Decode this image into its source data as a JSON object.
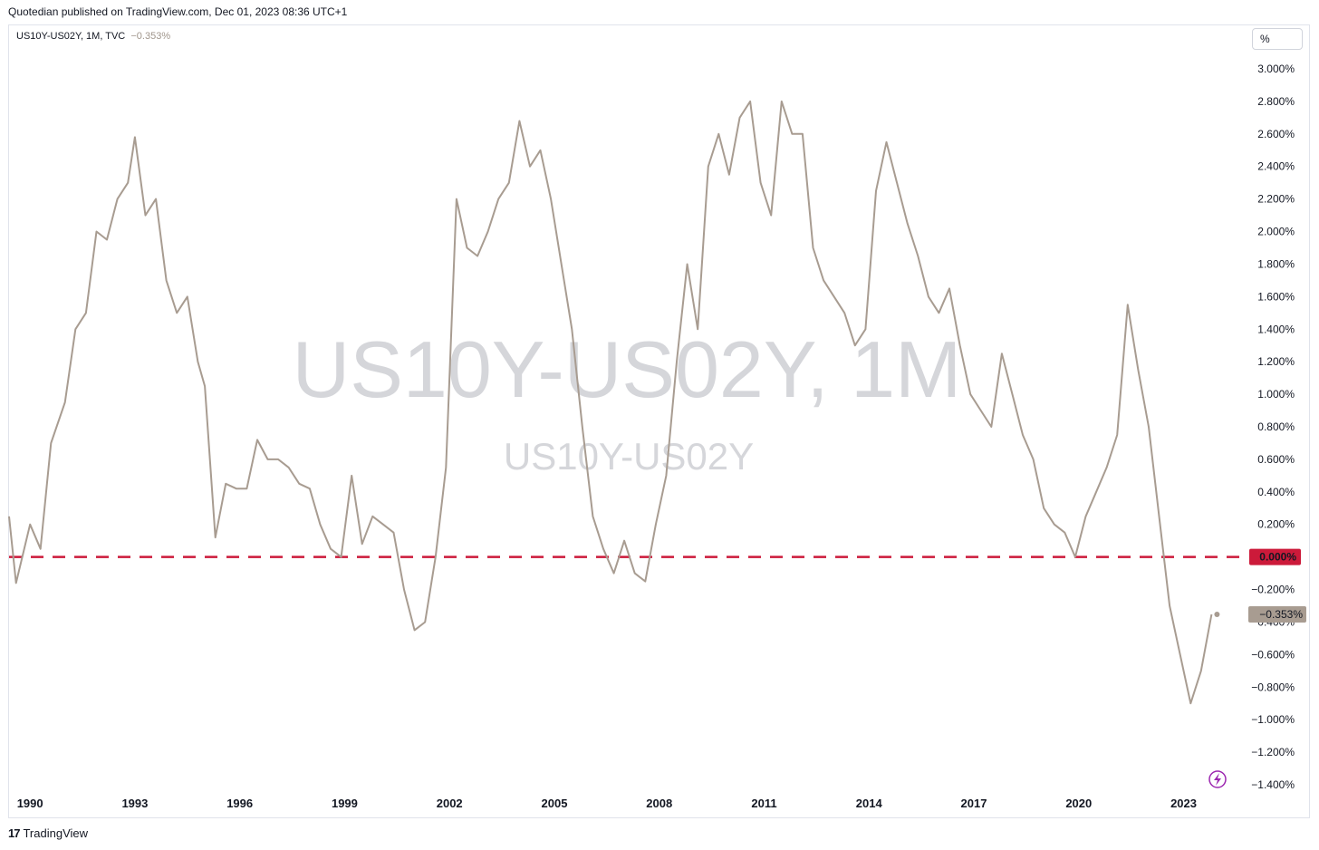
{
  "header": {
    "published": "Quotedian published on TradingView.com, Dec 01, 2023 08:36 UTC+1"
  },
  "legend": {
    "symbol": "US10Y-US02Y, 1M, TVC",
    "value": "−0.353%"
  },
  "unit_button": "%",
  "watermark": {
    "main": "US10Y-US02Y, 1M",
    "sub": "US10Y-US02Y"
  },
  "footer": {
    "brand": "TradingView",
    "logo": "17"
  },
  "colors": {
    "line": "#a89c91",
    "zero_line": "#cc1a3a",
    "last_badge": "#a89c91",
    "zero_badge": "#cc1a3a",
    "alert_icon": "#9c27b0"
  },
  "icons": {
    "alert": "lightning-icon",
    "logo": "tradingview-logo-icon"
  },
  "chart_data": {
    "type": "line",
    "series": [
      {
        "name": "US10Y-US02Y",
        "x_unit": "year",
        "y_unit": "%"
      }
    ],
    "x": [
      1989.4,
      1989.6,
      1990.0,
      1990.3,
      1990.6,
      1991.0,
      1991.3,
      1991.6,
      1991.9,
      1992.2,
      1992.5,
      1992.8,
      1993.0,
      1993.3,
      1993.6,
      1993.9,
      1994.2,
      1994.5,
      1994.8,
      1995.0,
      1995.3,
      1995.6,
      1995.9,
      1996.2,
      1996.5,
      1996.8,
      1997.1,
      1997.4,
      1997.7,
      1998.0,
      1998.3,
      1998.6,
      1998.9,
      1999.2,
      1999.5,
      1999.8,
      2000.1,
      2000.4,
      2000.7,
      2001.0,
      2001.3,
      2001.6,
      2001.9,
      2002.2,
      2002.5,
      2002.8,
      2003.1,
      2003.4,
      2003.7,
      2004.0,
      2004.3,
      2004.6,
      2004.9,
      2005.2,
      2005.5,
      2005.8,
      2006.1,
      2006.4,
      2006.7,
      2007.0,
      2007.3,
      2007.6,
      2007.9,
      2008.2,
      2008.5,
      2008.8,
      2009.1,
      2009.4,
      2009.7,
      2010.0,
      2010.3,
      2010.6,
      2010.9,
      2011.2,
      2011.5,
      2011.8,
      2012.1,
      2012.4,
      2012.7,
      2013.0,
      2013.3,
      2013.6,
      2013.9,
      2014.2,
      2014.5,
      2014.8,
      2015.1,
      2015.4,
      2015.7,
      2016.0,
      2016.3,
      2016.6,
      2016.9,
      2017.2,
      2017.5,
      2017.8,
      2018.1,
      2018.4,
      2018.7,
      2019.0,
      2019.3,
      2019.6,
      2019.9,
      2020.2,
      2020.5,
      2020.8,
      2021.1,
      2021.4,
      2021.7,
      2022.0,
      2022.3,
      2022.6,
      2022.9,
      2023.2,
      2023.5,
      2023.8
    ],
    "y": [
      0.25,
      -0.16,
      0.2,
      0.05,
      0.7,
      0.95,
      1.4,
      1.5,
      2.0,
      1.95,
      2.2,
      2.3,
      2.58,
      2.1,
      2.2,
      1.7,
      1.5,
      1.6,
      1.2,
      1.05,
      0.12,
      0.45,
      0.42,
      0.42,
      0.72,
      0.6,
      0.6,
      0.55,
      0.45,
      0.42,
      0.2,
      0.05,
      0.0,
      0.5,
      0.08,
      0.25,
      0.2,
      0.15,
      -0.2,
      -0.45,
      -0.4,
      0.0,
      0.55,
      2.2,
      1.9,
      1.85,
      2.0,
      2.2,
      2.3,
      2.68,
      2.4,
      2.5,
      2.2,
      1.8,
      1.4,
      0.8,
      0.25,
      0.05,
      -0.1,
      0.1,
      -0.1,
      -0.15,
      0.2,
      0.5,
      1.2,
      1.8,
      1.4,
      2.4,
      2.6,
      2.35,
      2.7,
      2.8,
      2.3,
      2.1,
      2.8,
      2.6,
      2.6,
      1.9,
      1.7,
      1.6,
      1.5,
      1.3,
      1.4,
      2.25,
      2.55,
      2.3,
      2.05,
      1.85,
      1.6,
      1.5,
      1.65,
      1.3,
      1.0,
      0.9,
      0.8,
      1.25,
      1.0,
      0.75,
      0.6,
      0.3,
      0.2,
      0.15,
      0.0,
      0.25,
      0.4,
      0.55,
      0.75,
      1.55,
      1.15,
      0.8,
      0.25,
      -0.3,
      -0.6,
      -0.9,
      -0.7,
      -0.353
    ],
    "x_ticks": [
      "1990",
      "1993",
      "1996",
      "1999",
      "2002",
      "2005",
      "2008",
      "2011",
      "2014",
      "2017",
      "2020",
      "2023"
    ],
    "y_ticks": [
      "3.000%",
      "2.800%",
      "2.600%",
      "2.400%",
      "2.200%",
      "2.000%",
      "1.800%",
      "1.600%",
      "1.400%",
      "1.200%",
      "1.000%",
      "0.800%",
      "0.600%",
      "0.400%",
      "0.200%",
      "−0.200%",
      "−0.400%",
      "−0.600%",
      "−0.800%",
      "−1.000%",
      "−1.200%",
      "−1.400%"
    ],
    "y_tick_values": [
      3.0,
      2.8,
      2.6,
      2.4,
      2.2,
      2.0,
      1.8,
      1.6,
      1.4,
      1.2,
      1.0,
      0.8,
      0.6,
      0.4,
      0.2,
      -0.2,
      -0.4,
      -0.6,
      -0.8,
      -1.0,
      -1.2,
      -1.4
    ],
    "x_tick_values": [
      1990,
      1993,
      1996,
      1999,
      2002,
      2005,
      2008,
      2011,
      2014,
      2017,
      2020,
      2023
    ],
    "ylim": [
      -1.4,
      3.0
    ],
    "xlim": [
      1989.4,
      2024.8
    ],
    "zero_line": {
      "value": 0.0,
      "label": "0.000%"
    },
    "last_value": {
      "value": -0.353,
      "label": "−0.353%"
    },
    "grid": false
  }
}
